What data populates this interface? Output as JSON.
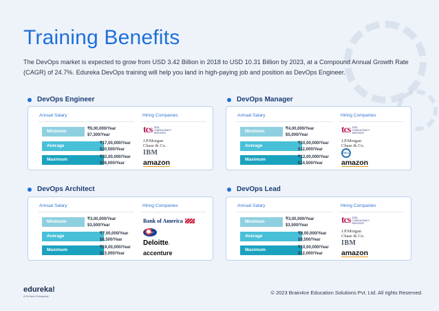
{
  "page": {
    "title": "Training Benefits",
    "intro": "The DevOps market is expected to grow from USD 3.42 Billion in 2018 to USD 10.31 Billion by 2023, at a Compound Annual Growth Rate (CAGR) of 24.7%. Edureka DevOps training will help you land in high-paying job and position as DevOps Engineer."
  },
  "labels": {
    "annual_salary": "Annual Salary",
    "hiring_companies": "Hiring Companies",
    "minimum": "Minimum",
    "average": "Average",
    "maximum": "Maximum"
  },
  "cards": [
    {
      "role": "DevOps Engineer",
      "min": [
        "₹6,00,000/Year",
        "$7,300/Year"
      ],
      "avg": [
        "₹17,00,000/Year",
        "$20,500/Year"
      ],
      "max": [
        "₹32,00,000/Year",
        "$38,000/Year"
      ],
      "companies": [
        "tcs",
        "jpmorgan",
        "ibm",
        "amazon"
      ]
    },
    {
      "role": "DevOps Manager",
      "min": [
        "₹4,00,000/Year",
        "$5,000/Year"
      ],
      "avg": [
        "₹10,00,000/Year",
        "$12,000/Year"
      ],
      "max": [
        "₹12,00,000/Year",
        "$14,500/Year"
      ],
      "companies": [
        "tcs",
        "jpmorgan",
        "dell",
        "amazon"
      ]
    },
    {
      "role": "DevOps Architect",
      "min": [
        "₹3,00,000/Year",
        "$3,500/Year"
      ],
      "avg": [
        "₹7,00,000/Year",
        "$8,500/Year"
      ],
      "max": [
        "₹19,00,000/Year",
        "$23,000/Year"
      ],
      "companies": [
        "bankofamerica",
        "sapient",
        "deloitte",
        "accenture"
      ]
    },
    {
      "role": "DevOps Lead",
      "min": [
        "₹3,00,000/Year",
        "$3,500/Year"
      ],
      "avg": [
        "₹8,00,000/Year",
        "$9,500/Year"
      ],
      "max": [
        "₹10,00,000/Year",
        "$12,000/Year"
      ],
      "companies": [
        "tcs",
        "jpmorgan",
        "ibm",
        "amazon"
      ]
    }
  ],
  "logos": {
    "tcs_mark": "tcs",
    "tcs_text": "TATA CONSULTANCY SERVICES",
    "jpmorgan_line1": "J.P.Morgan",
    "jpmorgan_line2": "Chase & Co.",
    "ibm": "IBM",
    "amazon": "amazon",
    "dell": "DELL",
    "bankofamerica": "Bank of America",
    "sapient": "sapient",
    "deloitte": "Deloitte",
    "deloitte_dot": ".",
    "accenture": "accenture"
  },
  "footer": {
    "brand": "edureka!",
    "sub": "A Ed-tech Enterprise",
    "copyright": "© 2023 Brain4ce Education Solutions Pvt. Ltd. All rights Reserved."
  },
  "colors": {
    "title": "#1e6fd9",
    "min_pill": "#8fd0e0",
    "avg_pill": "#48c0d8",
    "max_pill": "#1aa2be"
  }
}
